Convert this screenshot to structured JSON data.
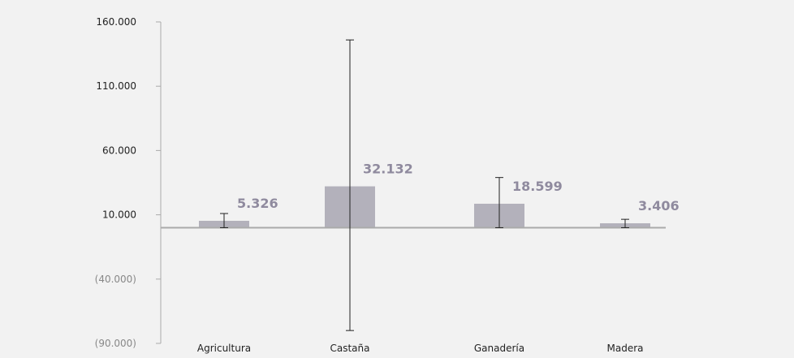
{
  "chart_data": {
    "type": "bar",
    "title": "",
    "xlabel": "",
    "ylabel": "",
    "categories": [
      "Agricultura",
      "Castaña",
      "Ganadería",
      "Madera"
    ],
    "values": [
      5326,
      32132,
      18599,
      3406
    ],
    "data_labels": [
      "5.326",
      "32.132",
      "18.599",
      "3.406"
    ],
    "error_bars": [
      {
        "low": 0,
        "high": 11000
      },
      {
        "low": -80000,
        "high": 146000
      },
      {
        "low": 0,
        "high": 39000
      },
      {
        "low": 0,
        "high": 6500
      }
    ],
    "ylim": [
      -90000,
      160000
    ],
    "yticks": [
      160000,
      110000,
      60000,
      10000,
      -40000,
      -90000
    ],
    "ytick_labels": [
      "160.000",
      "110.000",
      "60.000",
      "10.000",
      "(40.000)",
      "(90.000)"
    ],
    "grid": false,
    "legend": "none",
    "colors": {
      "bar": "#b3b1bb",
      "baseline": "#aaaaaa",
      "axis": "#aaaaaa",
      "error_bar": "#222222",
      "data_label": "#8f8a9e",
      "positive_tick_label": "#222222",
      "negative_tick_label": "#888888",
      "background": "#f2f2f2"
    }
  }
}
